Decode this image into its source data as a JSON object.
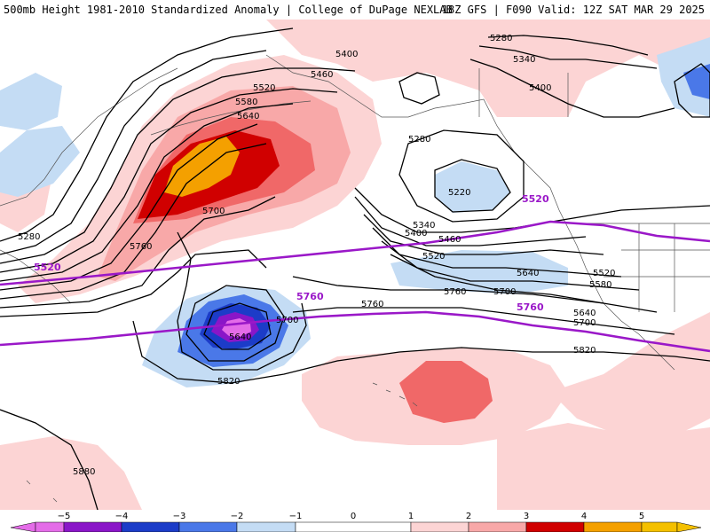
{
  "header": {
    "title": "500mb Height 1981-2010 Standardized Anomaly | College of DuPage NEXLAB",
    "run": "18Z GFS | F090 Valid: 12Z SAT MAR 29 2025"
  },
  "colors": {
    "neg5": "#e46ce8",
    "neg4": "#8a16c8",
    "neg3": "#1c3cc8",
    "neg2": "#4a78e8",
    "neg1": "#c4dcf4",
    "pos1": "#fcd4d4",
    "pos2": "#f8a8a8",
    "pos3": "#f06868",
    "pos4": "#d00000",
    "pos5": "#f4a000",
    "height_contour": "#000000",
    "highlight_contour": "#9a18c8",
    "coastline": "#555555"
  },
  "contour_labels": [
    "5280",
    "5340",
    "5400",
    "5400",
    "5460",
    "5520",
    "5580",
    "5640",
    "5280",
    "5220",
    "5700",
    "5340",
    "5400",
    "5460",
    "5520",
    "5280",
    "5760",
    "5640",
    "5700",
    "5520",
    "5580",
    "5640",
    "5700",
    "5760",
    "5700",
    "5640",
    "5820",
    "5820",
    "5880",
    "5760"
  ],
  "highlight_labels": [
    "5520",
    "5520",
    "5760",
    "5760"
  ],
  "colorbar": {
    "ticks": [
      "−5",
      "−4",
      "−3",
      "−2",
      "−1",
      "0",
      "1",
      "2",
      "3",
      "4",
      "5"
    ]
  }
}
